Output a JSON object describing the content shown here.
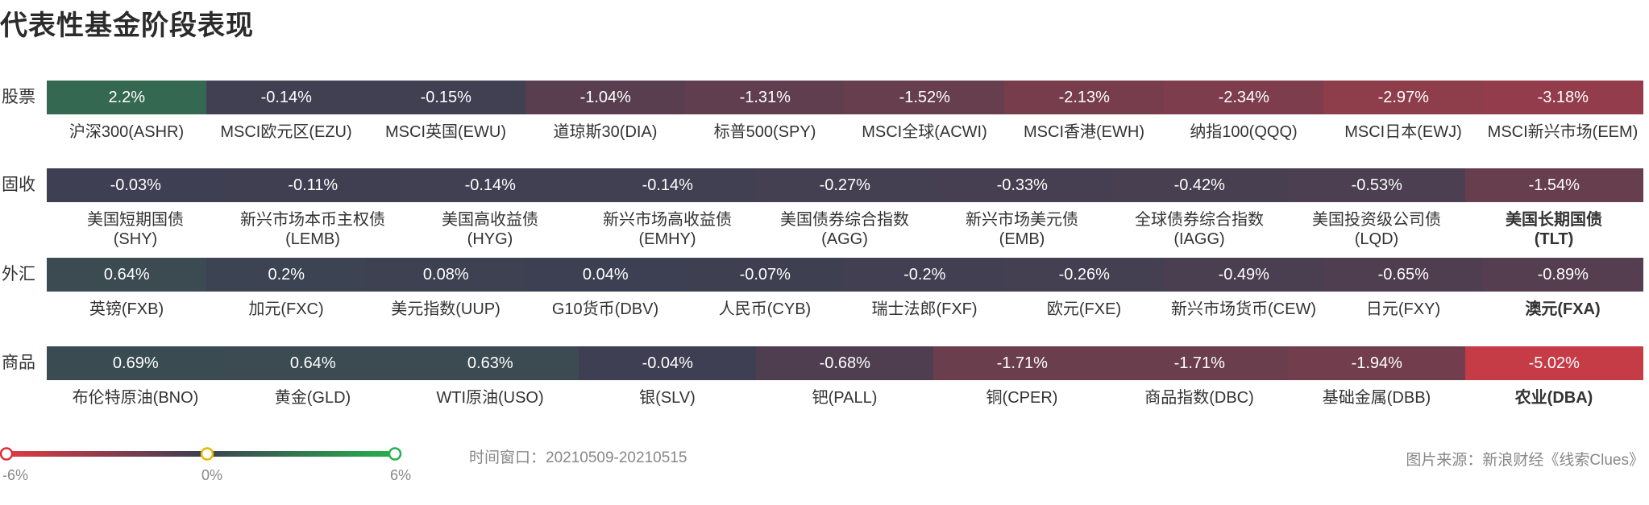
{
  "title": "代表性基金阶段表现",
  "footer": {
    "window": "时间窗口：20210509-20210515",
    "source": "图片来源：新浪财经《线索Clues》"
  },
  "legend": {
    "min_label": "-6%",
    "mid_label": "0%",
    "max_label": "6%",
    "colors": {
      "negative": "#e03a44",
      "neutral": "#3d3f52",
      "positive": "#27b04c"
    }
  },
  "chart_data": {
    "type": "heatmap",
    "title": "代表性基金阶段表现",
    "value_range": [
      -6,
      6
    ],
    "rows": [
      {
        "label": "股票",
        "cells": [
          {
            "name": "沪深300(ASHR)",
            "value": 2.2,
            "text": "2.2%"
          },
          {
            "name": "MSCI欧元区(EZU)",
            "value": -0.14,
            "text": "-0.14%"
          },
          {
            "name": "MSCI英国(EWU)",
            "value": -0.15,
            "text": "-0.15%"
          },
          {
            "name": "道琼斯30(DIA)",
            "value": -1.04,
            "text": "-1.04%"
          },
          {
            "name": "标普500(SPY)",
            "value": -1.31,
            "text": "-1.31%"
          },
          {
            "name": "MSCI全球(ACWI)",
            "value": -1.52,
            "text": "-1.52%"
          },
          {
            "name": "MSCI香港(EWH)",
            "value": -2.13,
            "text": "-2.13%"
          },
          {
            "name": "纳指100(QQQ)",
            "value": -2.34,
            "text": "-2.34%"
          },
          {
            "name": "MSCI日本(EWJ)",
            "value": -2.97,
            "text": "-2.97%"
          },
          {
            "name": "MSCI新兴市场(EEM)",
            "value": -3.18,
            "text": "-3.18%"
          }
        ]
      },
      {
        "label": "固收",
        "cells": [
          {
            "name": "美国短期国债",
            "code": "(SHY)",
            "value": -0.03,
            "text": "-0.03%"
          },
          {
            "name": "新兴市场本币主权债",
            "code": "(LEMB)",
            "value": -0.11,
            "text": "-0.11%"
          },
          {
            "name": "美国高收益债",
            "code": "(HYG)",
            "value": -0.14,
            "text": "-0.14%"
          },
          {
            "name": "新兴市场高收益债",
            "code": "(EMHY)",
            "value": -0.14,
            "text": "-0.14%"
          },
          {
            "name": "美国债券综合指数",
            "code": "(AGG)",
            "value": -0.27,
            "text": "-0.27%"
          },
          {
            "name": "新兴市场美元债",
            "code": "(EMB)",
            "value": -0.33,
            "text": "-0.33%"
          },
          {
            "name": "全球债券综合指数",
            "code": "(IAGG)",
            "value": -0.42,
            "text": "-0.42%"
          },
          {
            "name": "美国投资级公司债",
            "code": "(LQD)",
            "value": -0.53,
            "text": "-0.53%"
          },
          {
            "name": "美国长期国债",
            "code": "(TLT)",
            "value": -1.54,
            "text": "-1.54%"
          }
        ]
      },
      {
        "label": "外汇",
        "cells": [
          {
            "name": "英镑(FXB)",
            "value": 0.64,
            "text": "0.64%"
          },
          {
            "name": "加元(FXC)",
            "value": 0.2,
            "text": "0.2%"
          },
          {
            "name": "美元指数(UUP)",
            "value": 0.08,
            "text": "0.08%"
          },
          {
            "name": "G10货币(DBV)",
            "value": 0.04,
            "text": "0.04%"
          },
          {
            "name": "人民币(CYB)",
            "value": -0.07,
            "text": "-0.07%"
          },
          {
            "name": "瑞士法郎(FXF)",
            "value": -0.2,
            "text": "-0.2%"
          },
          {
            "name": "欧元(FXE)",
            "value": -0.26,
            "text": "-0.26%"
          },
          {
            "name": "新兴市场货币(CEW)",
            "value": -0.49,
            "text": "-0.49%"
          },
          {
            "name": "日元(FXY)",
            "value": -0.65,
            "text": "-0.65%"
          },
          {
            "name": "澳元(FXA)",
            "value": -0.89,
            "text": "-0.89%"
          }
        ]
      },
      {
        "label": "商品",
        "cells": [
          {
            "name": "布伦特原油(BNO)",
            "value": 0.69,
            "text": "0.69%"
          },
          {
            "name": "黄金(GLD)",
            "value": 0.64,
            "text": "0.64%"
          },
          {
            "name": "WTI原油(USO)",
            "value": 0.63,
            "text": "0.63%"
          },
          {
            "name": "银(SLV)",
            "value": -0.04,
            "text": "-0.04%"
          },
          {
            "name": "钯(PALL)",
            "value": -0.68,
            "text": "-0.68%"
          },
          {
            "name": "铜(CPER)",
            "value": -1.71,
            "text": "-1.71%"
          },
          {
            "name": "商品指数(DBC)",
            "value": -1.71,
            "text": "-1.71%"
          },
          {
            "name": "基础金属(DBB)",
            "value": -1.94,
            "text": "-1.94%"
          },
          {
            "name": "农业(DBA)",
            "value": -5.02,
            "text": "-5.02%"
          }
        ]
      }
    ]
  }
}
